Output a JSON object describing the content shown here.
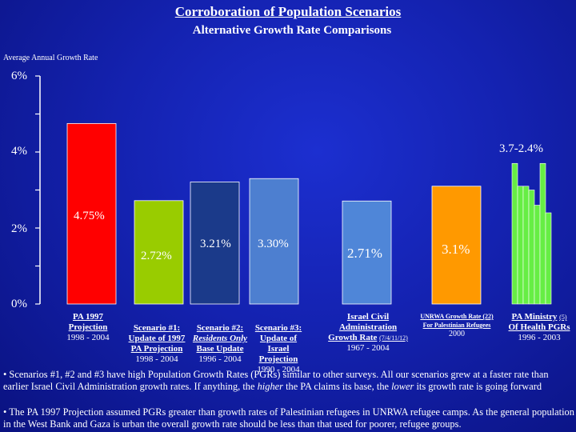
{
  "title": "Corroboration of Population Scenarios",
  "subtitle": "Alternative Growth Rate Comparisons",
  "chart_data": {
    "type": "bar",
    "ylabel": "Average Annual Growth Rate",
    "ylim": [
      0,
      6
    ],
    "yticks": [
      "0%",
      "2%",
      "4%",
      "6%"
    ],
    "bar_colors": [
      "#ff0000",
      "#99cc00",
      "#1b3a8a",
      "#4d7fd0",
      "#4f86d8",
      "#ff9900"
    ],
    "bars": [
      {
        "value": 4.75,
        "label": "4.75%"
      },
      {
        "value": 2.72,
        "label": "2.72%"
      },
      {
        "value": 3.21,
        "label": "3.21%"
      },
      {
        "value": 3.3,
        "label": "3.30%"
      },
      {
        "value": 2.71,
        "label": "2.71%"
      },
      {
        "value": 3.1,
        "label": "3.1%"
      }
    ],
    "moh_series": {
      "values": [
        3.7,
        3.1,
        3.1,
        3.0,
        2.6,
        3.7,
        2.4
      ],
      "color": "#66ee44",
      "label": "3.7-2.4%"
    }
  },
  "categories": {
    "pa1997": {
      "l1": "PA 1997",
      "l2": "Projection",
      "yr": "1998 - 2004"
    },
    "s1": {
      "l1": "Scenario #1:",
      "l2": "Update of 1997",
      "l3": "PA Projection",
      "yr": "1998 - 2004"
    },
    "s2": {
      "l1": "Scenario #2:",
      "l2": "Residents Only",
      "l3": "Base Update",
      "yr": "1996 - 2004"
    },
    "s3": {
      "l1": "Scenario #3:",
      "l2": "Update of",
      "l3": "Israel",
      "l4": "Projection",
      "yr": "1990 - 2004"
    },
    "ica": {
      "l1": "Israel Civil",
      "l2": "Administration",
      "l3": "Growth Rate",
      "l3b": "(7/4/11/12)",
      "yr": "1967 - 2004"
    },
    "unrwa": {
      "l1": "UNRWA Growth Rate (22)",
      "l2": "For Palestinian Refugees",
      "yr": "2000"
    },
    "moh": {
      "l1": "PA Ministry",
      "l1b": "(5)",
      "l2": "Of Health PGRs",
      "yr": "1996 - 2003"
    }
  },
  "notes": {
    "n1_a": "• Scenarios #1, #2 and #3 have high Population Growth Rates (PGRs) similar to other surveys.  All our scenarios grew at a faster rate than earlier Israel Civil Administration growth rates.  If anything, the ",
    "n1_higher": "higher",
    "n1_b": " the PA claims its base, the ",
    "n1_lower": "lower",
    "n1_c": " its growth rate is going forward",
    "n2": "• The PA 1997 Projection assumed PGRs greater than growth rates of Palestinian refugees in UNRWA refugee camps.  As the general population in the West Bank and Gaza is urban the overall growth rate should be less than that used for poorer, refugee groups."
  }
}
